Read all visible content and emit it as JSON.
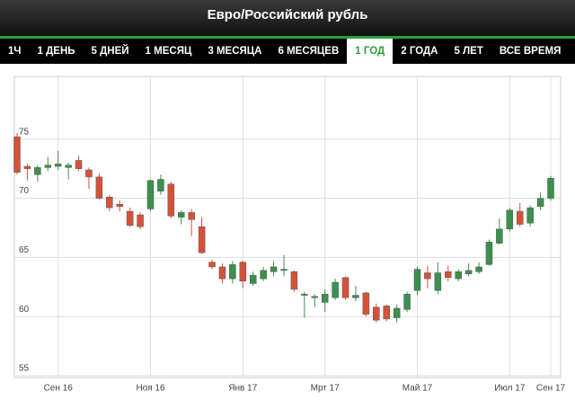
{
  "tabs": [
    "1Ч",
    "1 ДЕНЬ",
    "5 ДНЕЙ",
    "1 МЕСЯЦ",
    "3 МЕСЯЦА",
    "6 МЕСЯЦЕВ",
    "1 ГОД",
    "2 ГОДА",
    "5 ЛЕТ",
    "ВСЕ ВРЕМЯ"
  ],
  "active_tab": 6,
  "chart_data": {
    "type": "candlestick",
    "title": "Евро/Российский рубль",
    "categories": [
      null,
      null,
      null,
      null,
      "Сен 16",
      null,
      null,
      null,
      null,
      null,
      null,
      null,
      null,
      "Ноя 16",
      null,
      null,
      null,
      null,
      null,
      null,
      null,
      null,
      "Янв 17",
      null,
      null,
      null,
      null,
      null,
      null,
      null,
      "Мрт 17",
      null,
      null,
      null,
      null,
      null,
      null,
      null,
      null,
      "Май 17",
      null,
      null,
      null,
      null,
      null,
      null,
      null,
      null,
      "Июл 17",
      null,
      null,
      null,
      "Сен 17"
    ],
    "open": [
      75.2,
      72.7,
      72.0,
      72.6,
      72.7,
      72.6,
      73.2,
      72.4,
      71.8,
      70.1,
      69.5,
      68.9,
      68.6,
      69.1,
      70.6,
      71.2,
      68.4,
      68.8,
      67.6,
      64.6,
      64.2,
      63.2,
      64.6,
      62.8,
      63.2,
      63.8,
      63.9,
      63.8,
      61.8,
      61.6,
      61.2,
      61.6,
      63.3,
      61.6,
      62.0,
      60.8,
      60.9,
      59.9,
      60.6,
      62.2,
      63.7,
      62.2,
      63.8,
      63.2,
      63.6,
      63.8,
      64.4,
      66.2,
      67.4,
      68.9,
      67.9,
      69.3,
      70.0
    ],
    "high": [
      75.5,
      72.9,
      72.8,
      73.5,
      74.0,
      73.0,
      73.6,
      72.6,
      72.1,
      70.3,
      69.8,
      69.2,
      68.8,
      71.6,
      72.0,
      71.4,
      69.0,
      69.1,
      68.4,
      64.8,
      64.5,
      64.7,
      64.7,
      63.8,
      64.2,
      64.7,
      65.2,
      63.9,
      62.1,
      61.9,
      62.3,
      63.2,
      63.4,
      62.6,
      62.1,
      61.1,
      61.0,
      61.0,
      62.1,
      64.2,
      64.3,
      64.6,
      64.3,
      64.0,
      64.5,
      64.6,
      66.5,
      68.3,
      69.2,
      69.6,
      69.4,
      70.5,
      71.9
    ],
    "low": [
      72.0,
      71.5,
      71.4,
      72.3,
      72.4,
      71.6,
      72.3,
      70.8,
      69.9,
      68.9,
      68.9,
      67.6,
      67.4,
      68.9,
      70.3,
      68.3,
      67.8,
      66.8,
      65.3,
      64.0,
      62.8,
      62.8,
      62.4,
      62.6,
      63.0,
      63.4,
      63.4,
      62.1,
      59.9,
      60.8,
      60.4,
      61.4,
      61.4,
      61.3,
      60.0,
      59.5,
      59.6,
      59.5,
      60.4,
      61.8,
      62.4,
      61.9,
      63.0,
      63.0,
      63.4,
      63.6,
      64.3,
      66.1,
      67.2,
      67.6,
      67.6,
      69.0,
      69.8
    ],
    "close": [
      72.2,
      72.5,
      72.6,
      72.8,
      72.9,
      72.8,
      72.5,
      71.8,
      70.0,
      69.2,
      69.3,
      67.7,
      67.6,
      71.5,
      71.6,
      68.5,
      68.8,
      68.2,
      65.4,
      64.2,
      63.2,
      64.4,
      63.0,
      63.5,
      63.9,
      64.2,
      64.0,
      62.3,
      61.9,
      61.7,
      61.9,
      62.9,
      61.6,
      61.8,
      60.2,
      59.7,
      59.8,
      60.7,
      61.9,
      64.0,
      63.2,
      63.7,
      63.3,
      63.8,
      63.9,
      64.2,
      66.3,
      67.4,
      69.0,
      67.8,
      69.2,
      70.0,
      71.7
    ],
    "up_color": "#3d8f4e",
    "down_color": "#d4523a",
    "ylim": [
      54.85,
      80.3
    ],
    "yticks": [
      55,
      60,
      65,
      70,
      75
    ],
    "grid": true
  }
}
